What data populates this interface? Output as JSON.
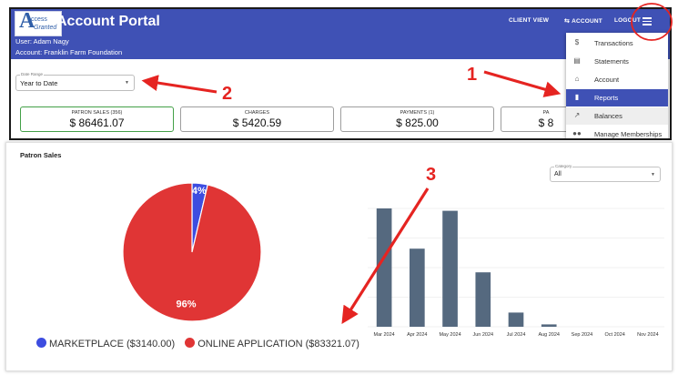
{
  "app": {
    "logo_word_1": "ccess",
    "logo_word_2": "Granted",
    "logo_letter": "A",
    "title": "Account Portal",
    "user_line": "User: Adam Nagy",
    "account_line": "Account: Franklin Farm Foundation"
  },
  "nav": {
    "client_view": "CLIENT VIEW",
    "account": "ACCOUNT",
    "logout": "LOGOUT"
  },
  "filters": {
    "date_range_label": "Date Range",
    "date_range_value": "Year to Date"
  },
  "cards": [
    {
      "label": "PATRON SALES (356)",
      "value": "$ 86461.07"
    },
    {
      "label": "CHARGES",
      "value": "$ 5420.59"
    },
    {
      "label": "PAYMENTS (1)",
      "value": "$ 825.00"
    },
    {
      "label": "PA",
      "value": "$ 8"
    }
  ],
  "menu": {
    "items": [
      {
        "label": "Transactions",
        "icon": "dollar-circle-icon"
      },
      {
        "label": "Statements",
        "icon": "document-icon"
      },
      {
        "label": "Account",
        "icon": "bank-icon"
      },
      {
        "label": "Reports",
        "icon": "bar-chart-icon"
      },
      {
        "label": "Balances",
        "icon": "trend-line-icon"
      },
      {
        "label": "Manage Memberships",
        "icon": "people-icon"
      }
    ]
  },
  "reports": {
    "section_title": "Patron Sales",
    "category_label": "Category",
    "category_value": "All"
  },
  "chart_data": [
    {
      "type": "pie",
      "labels": [
        "MARKETPLACE ($3140.00)",
        "ONLINE APPLICATION ($83321.07)"
      ],
      "values": [
        3140.0,
        83321.07
      ],
      "slice_labels": [
        "4%",
        "96%"
      ],
      "colors": [
        "#3d4de0",
        "#e03535"
      ],
      "legend_position": "bottom"
    },
    {
      "type": "bar",
      "categories": [
        "Mar 2024",
        "Apr 2024",
        "May 2024",
        "Jun 2024",
        "Jul 2024",
        "Aug 2024",
        "Sep 2024",
        "Oct 2024",
        "Nov 2024"
      ],
      "values": [
        100,
        66,
        98,
        46,
        12,
        2,
        0,
        0,
        0
      ],
      "color": "#55697f",
      "grid": true
    }
  ],
  "annotations": {
    "num_1": "1",
    "num_2": "2",
    "num_3": "3",
    "color": "#e52421"
  }
}
